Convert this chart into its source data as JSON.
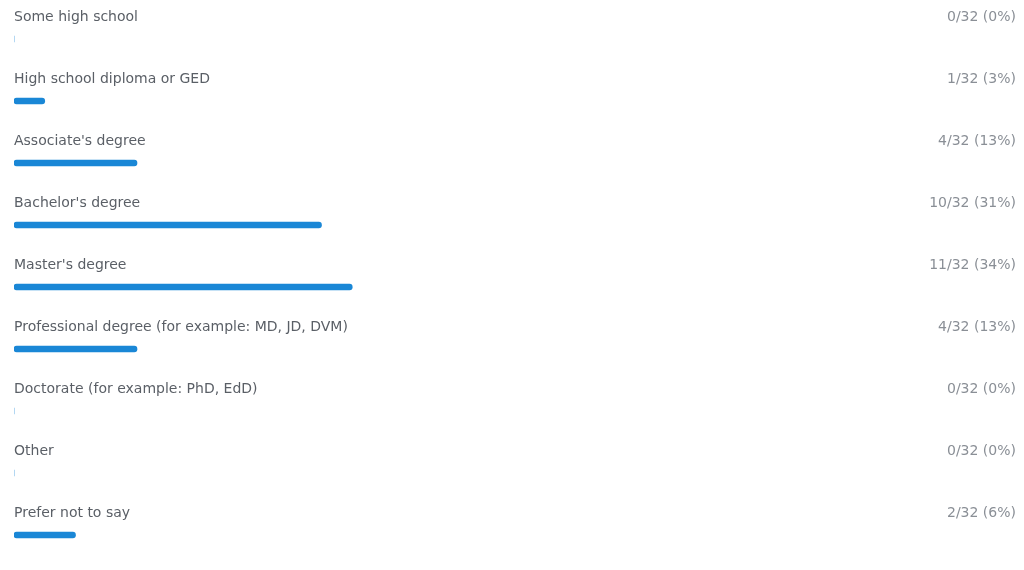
{
  "chart_data": {
    "type": "bar",
    "orientation": "horizontal",
    "categories": [
      "Some high school",
      "High school diploma or GED",
      "Associate's degree",
      "Bachelor's degree",
      "Master's degree",
      "Professional degree (for example: MD, JD, DVM)",
      "Doctorate (for example: PhD, EdD)",
      "Other",
      "Prefer not to say"
    ],
    "values": [
      0,
      1,
      4,
      10,
      11,
      4,
      0,
      0,
      2
    ],
    "value_labels": [
      "0/32 (0%)",
      "1/32 (3%)",
      "4/32 (13%)",
      "10/32 (31%)",
      "11/32 (34%)",
      "4/32 (13%)",
      "0/32 (0%)",
      "0/32 (0%)",
      "2/32 (6%)"
    ],
    "color": "#1a87d6",
    "tick_labels": false
  }
}
